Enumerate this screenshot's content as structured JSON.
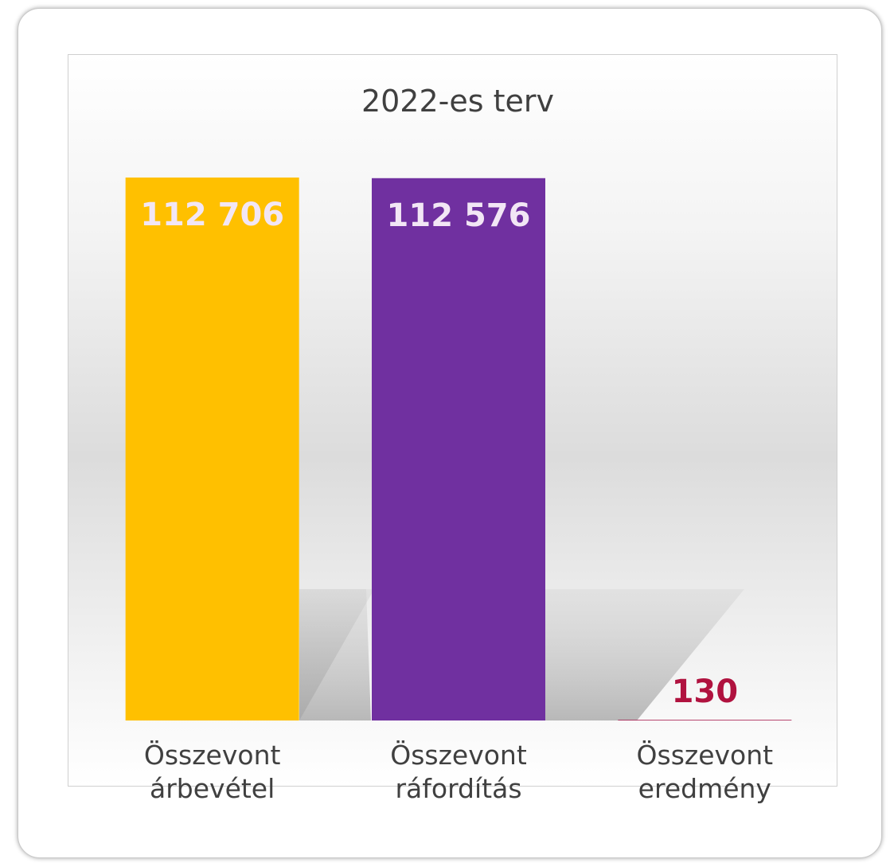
{
  "chart_data": {
    "type": "bar",
    "title": "2022-es terv",
    "categories": [
      "Összevont árbevétel",
      "Összevont ráfordítás",
      "Összevont eredmény"
    ],
    "values": [
      112706,
      112576,
      130
    ],
    "value_labels": [
      "112 706",
      "112 576",
      "130"
    ],
    "colors": [
      "#ffc000",
      "#7030a0",
      "#a5174b"
    ],
    "label_colors": [
      "#f2e6f5",
      "#f2e6f5",
      "#b0123f"
    ]
  }
}
